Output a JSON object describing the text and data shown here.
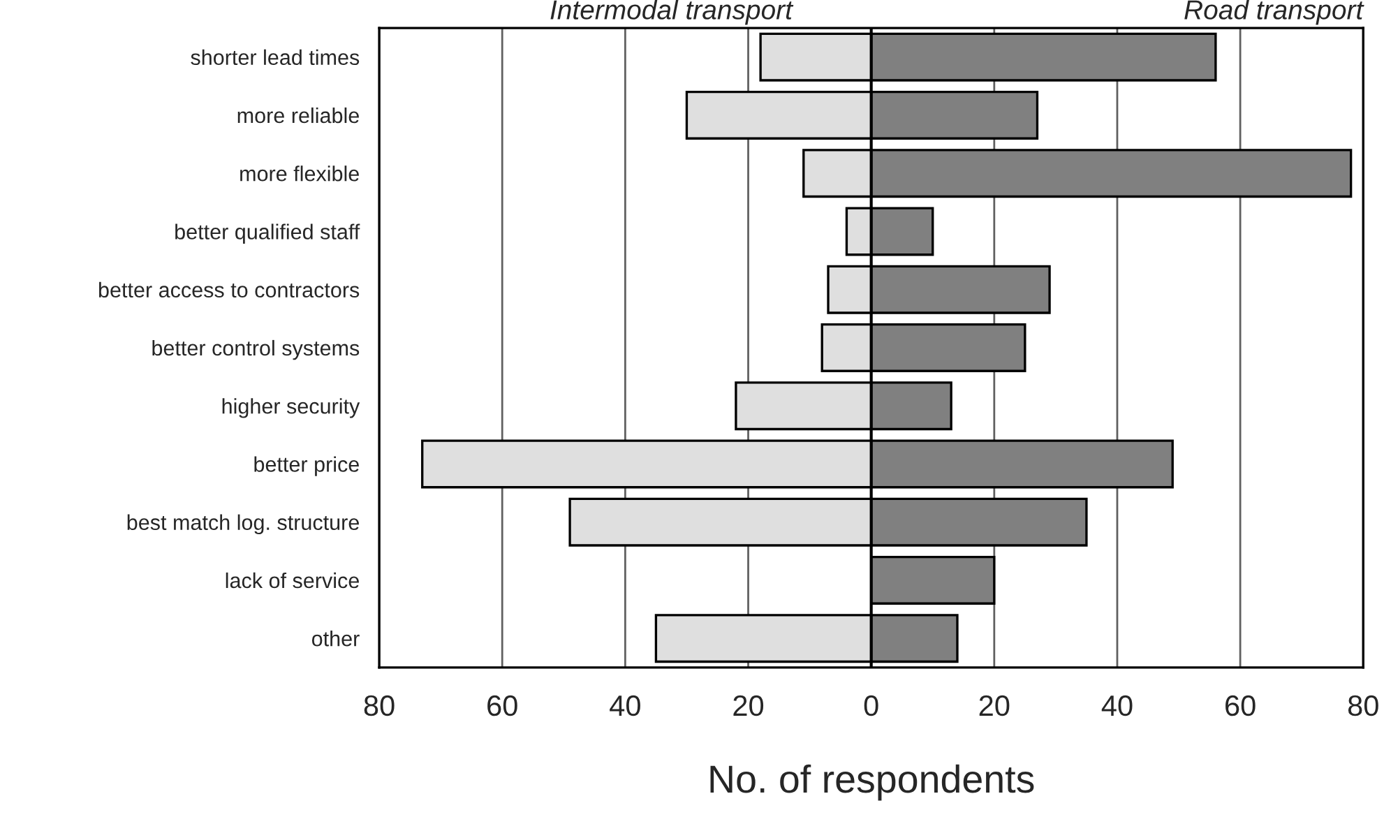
{
  "chart_data": {
    "type": "bar",
    "orientation": "horizontal",
    "xlabel": "No. of respondents",
    "categories": [
      "shorter lead times",
      "more reliable",
      "more flexible",
      "better qualified staff",
      "better access to contractors",
      "better control systems",
      "higher security",
      "better price",
      "best match log. structure",
      "lack of service",
      "other"
    ],
    "series": [
      {
        "name": "Intermodal transport",
        "color": "#dfdfdf",
        "values": [
          -18,
          -30,
          -11,
          -4,
          -7,
          -8,
          -22,
          -73,
          -49,
          null,
          -35
        ]
      },
      {
        "name": "Road transport",
        "color": "#808080",
        "values": [
          56,
          27,
          78,
          10,
          29,
          25,
          13,
          49,
          35,
          20,
          14
        ]
      }
    ],
    "xlim": [
      -80,
      80
    ],
    "xticks": [
      {
        "value": -80,
        "label": "80"
      },
      {
        "value": -60,
        "label": "60"
      },
      {
        "value": -40,
        "label": "40"
      },
      {
        "value": -20,
        "label": "20"
      },
      0,
      20,
      40,
      60,
      80
    ],
    "grid": "x",
    "legend": false,
    "stacked": true,
    "ref_lines": [
      {
        "axis": "x",
        "value": 0,
        "color": "#000000"
      }
    ]
  }
}
